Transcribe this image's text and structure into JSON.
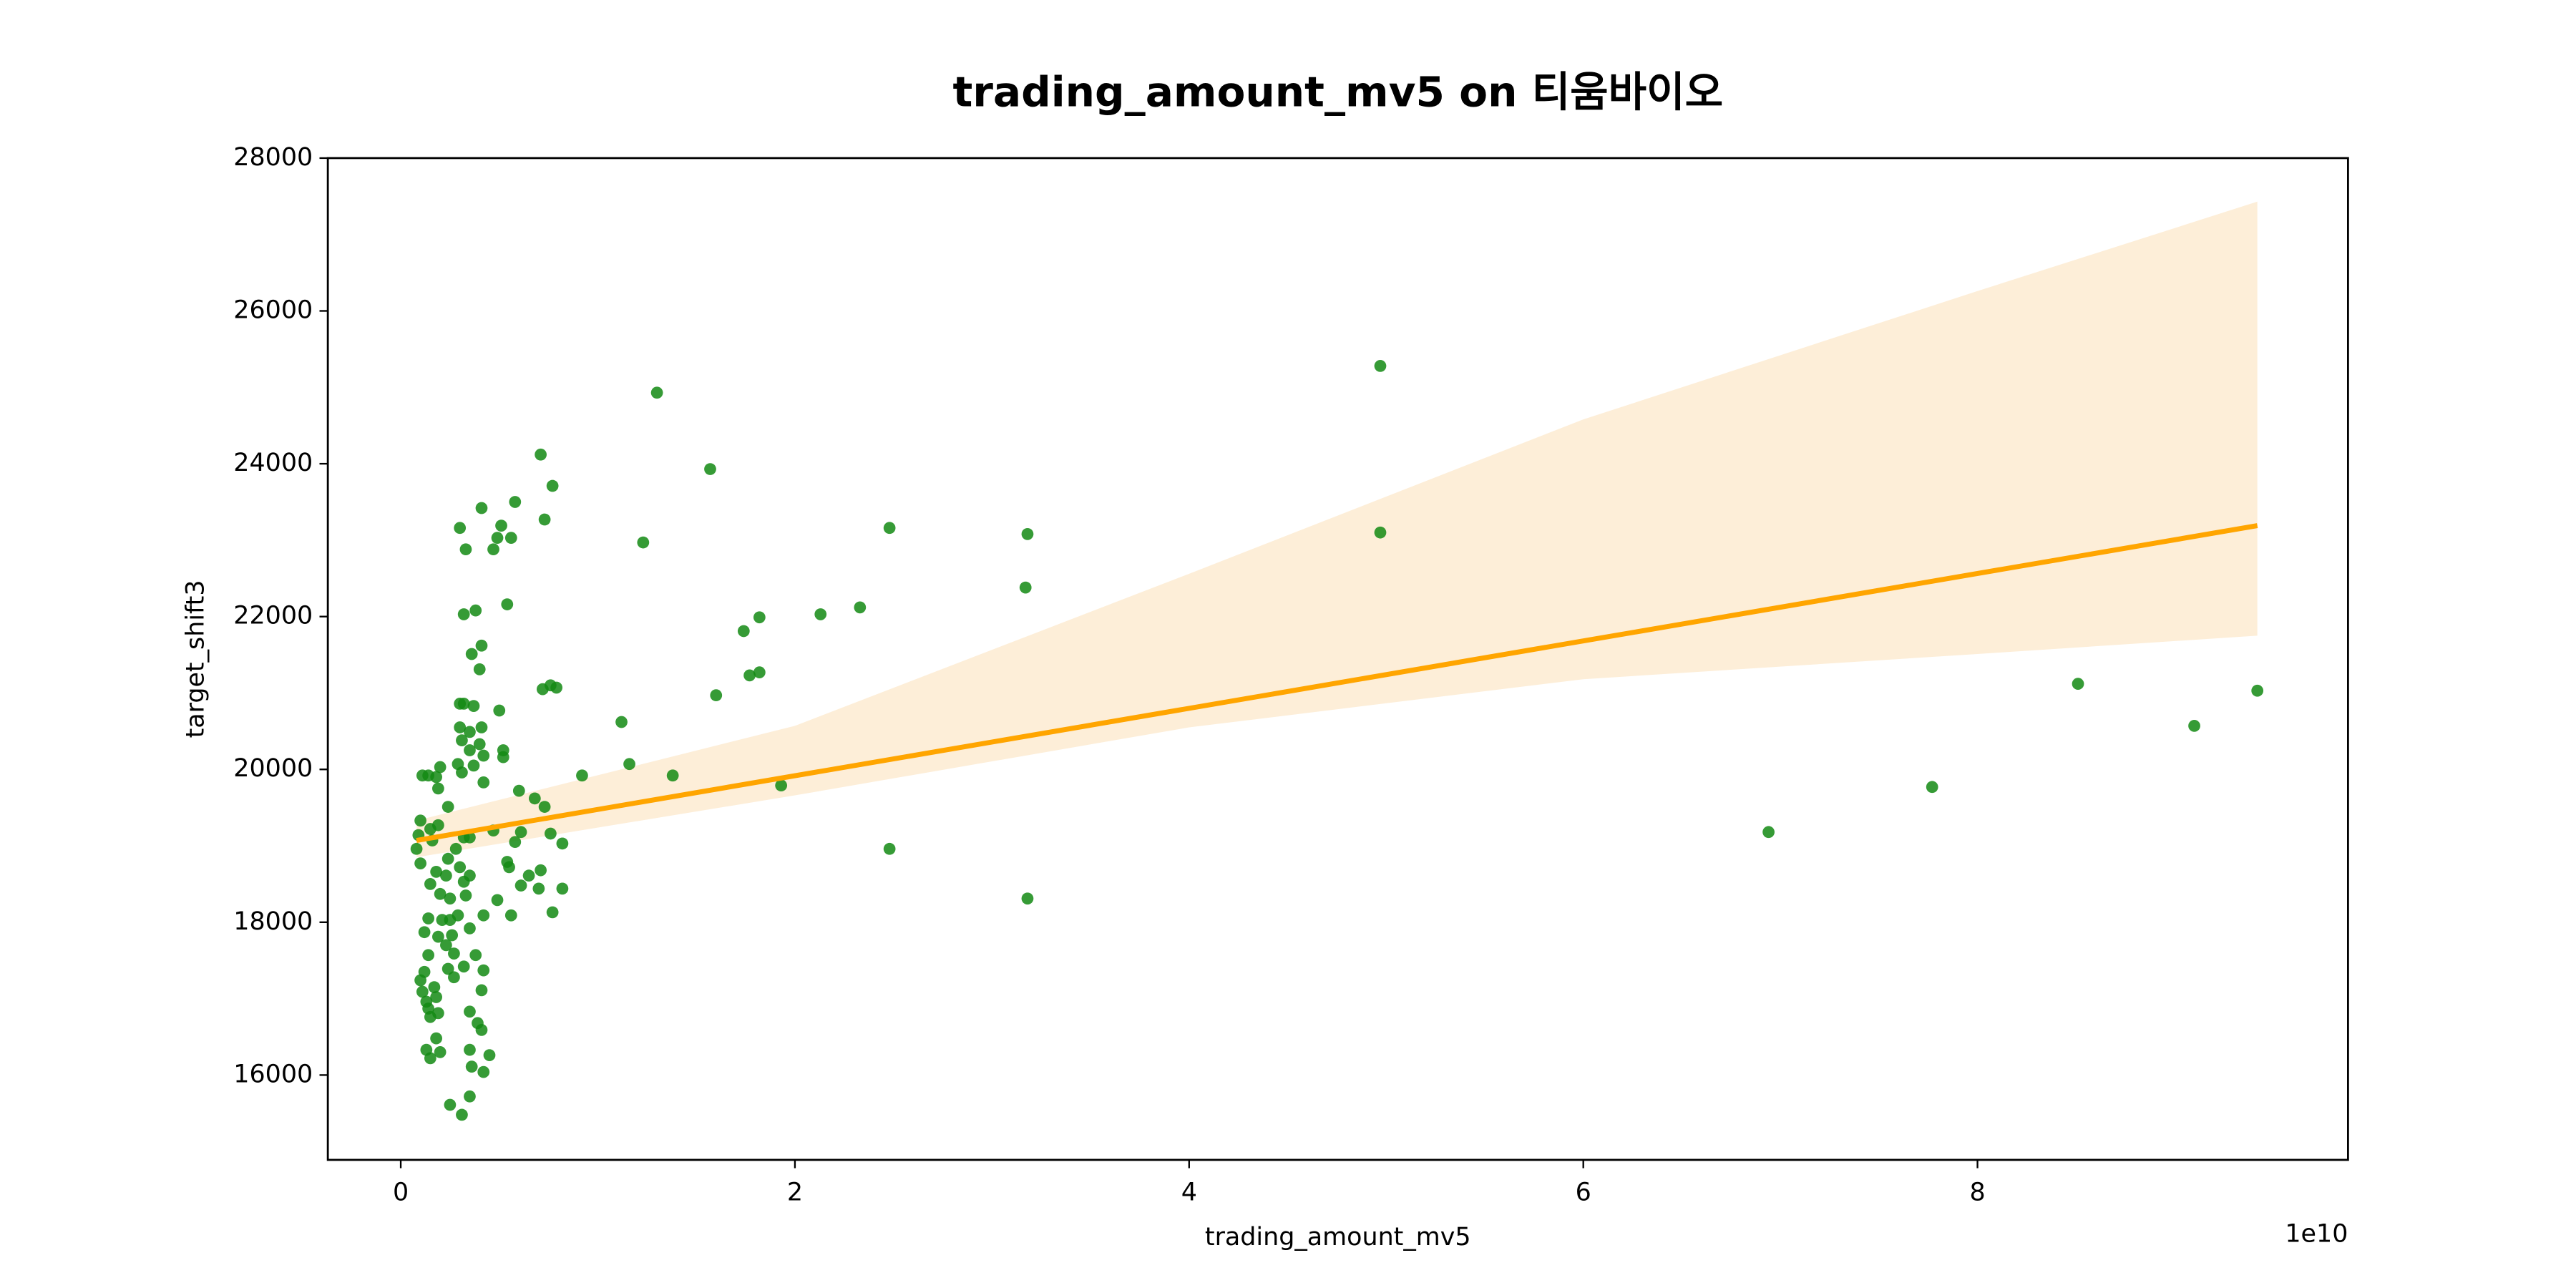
{
  "chart_data": {
    "type": "scatter",
    "title": "trading_amount_mv5 on 티움바이오",
    "xlabel": "trading_amount_mv5",
    "ylabel": "target_shift3",
    "x_offset_label": "1e10",
    "xlim": [
      -0.37,
      9.88
    ],
    "ylim": [
      14890,
      28000
    ],
    "xticks": [
      0,
      2,
      4,
      6,
      8
    ],
    "yticks": [
      16000,
      18000,
      20000,
      22000,
      24000,
      26000,
      28000
    ],
    "grid": false,
    "series": [
      {
        "name": "trading_amount_mv5",
        "color": "#138a13",
        "x": [
          4.97,
          4.97,
          6.94,
          7.77,
          8.51,
          9.1,
          9.42,
          1.3,
          1.57,
          1.23,
          2.48,
          3.18,
          3.17,
          2.33,
          2.13,
          1.82,
          1.74,
          1.82,
          1.77,
          1.6,
          1.12,
          1.16,
          1.38,
          0.92,
          1.93,
          2.48,
          3.18,
          0.71,
          0.77,
          0.73,
          0.58,
          0.41,
          0.51,
          0.49,
          0.56,
          0.3,
          0.33,
          0.47,
          0.54,
          0.38,
          0.32,
          0.41,
          0.36,
          0.4,
          0.76,
          0.72,
          0.79,
          0.3,
          0.32,
          0.37,
          0.5,
          0.41,
          0.3,
          0.35,
          0.31,
          0.4,
          0.52,
          0.35,
          0.42,
          0.52,
          0.29,
          0.37,
          0.2,
          0.14,
          0.11,
          0.18,
          0.31,
          0.42,
          0.19,
          0.6,
          0.68,
          0.73,
          0.24,
          0.1,
          0.19,
          0.15,
          0.47,
          0.61,
          0.76,
          0.09,
          0.32,
          0.35,
          0.82,
          0.58,
          0.08,
          0.16,
          0.28,
          0.24,
          0.54,
          0.1,
          0.3,
          0.55,
          0.18,
          0.35,
          0.65,
          0.71,
          0.23,
          0.32,
          0.61,
          0.15,
          0.7,
          0.82,
          0.2,
          0.33,
          0.25,
          0.49,
          0.77,
          0.42,
          0.56,
          0.29,
          0.14,
          0.21,
          0.25,
          0.12,
          0.19,
          0.26,
          0.35,
          0.23,
          0.14,
          0.27,
          0.38,
          0.32,
          0.24,
          0.42,
          0.12,
          0.27,
          0.1,
          0.17,
          0.41,
          0.11,
          0.18,
          0.13,
          0.14,
          0.19,
          0.35,
          0.15,
          0.39,
          0.18,
          0.41,
          0.13,
          0.35,
          0.2,
          0.45,
          0.15,
          0.42,
          0.36,
          0.35,
          0.25,
          0.31
        ],
        "values": [
          25280,
          23100,
          19180,
          19770,
          21120,
          20570,
          21030,
          24930,
          23930,
          22970,
          23160,
          23080,
          22380,
          22120,
          22030,
          21990,
          21810,
          21270,
          21230,
          20970,
          20620,
          20070,
          19920,
          19920,
          19790,
          18960,
          18310,
          24120,
          23710,
          23270,
          23500,
          23420,
          23190,
          23030,
          23030,
          23160,
          22880,
          22880,
          22160,
          22080,
          22030,
          21620,
          21510,
          21310,
          21100,
          21050,
          21070,
          20860,
          20860,
          20830,
          20770,
          20550,
          20550,
          20490,
          20380,
          20330,
          20250,
          20250,
          20180,
          20160,
          20070,
          20050,
          20030,
          19920,
          19920,
          19900,
          19960,
          19830,
          19750,
          19720,
          19620,
          19510,
          19510,
          19330,
          19270,
          19220,
          19200,
          19180,
          19160,
          19140,
          19110,
          19110,
          19030,
          19050,
          18960,
          19070,
          18960,
          18830,
          18790,
          18770,
          18720,
          18720,
          18660,
          18610,
          18610,
          18680,
          18610,
          18530,
          18480,
          18500,
          18440,
          18440,
          18370,
          18350,
          18310,
          18290,
          18130,
          18090,
          18090,
          18090,
          18050,
          18030,
          18030,
          17870,
          17810,
          17830,
          17920,
          17700,
          17570,
          17590,
          17570,
          17420,
          17390,
          17370,
          17350,
          17280,
          17240,
          17150,
          17110,
          17090,
          17020,
          16960,
          16870,
          16810,
          16830,
          16760,
          16680,
          16480,
          16590,
          16330,
          16330,
          16300,
          16260,
          16220,
          16040,
          16110,
          15720,
          15610,
          15480
        ]
      }
    ],
    "fit": {
      "color": "#ffa500",
      "x": [
        0.08,
        9.42
      ],
      "values": [
        19070,
        23190
      ]
    },
    "band": {
      "color": "#fdeed8",
      "x": [
        0.08,
        2,
        4,
        6,
        8,
        9.42
      ],
      "upper": [
        19330,
        20570,
        22560,
        24580,
        26260,
        27430
      ],
      "lower": [
        18850,
        19660,
        20550,
        21180,
        21510,
        21750
      ]
    }
  }
}
